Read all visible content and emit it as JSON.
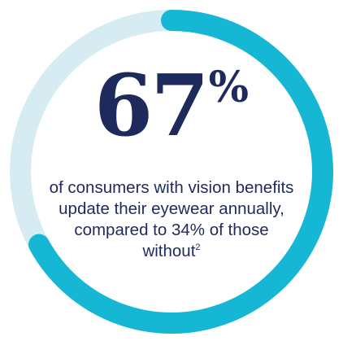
{
  "chart_data": {
    "type": "pie",
    "style": "donut",
    "values": [
      67,
      33
    ],
    "value": 67,
    "unit": "%",
    "colors": {
      "filled": "#16b7d4",
      "track": "#d6ecf2",
      "text": "#1f2a5c"
    },
    "caption_main": "of consumers with vision benefits update their eyewear annually, compared to 34% of those without",
    "footnote_ref": "2"
  }
}
